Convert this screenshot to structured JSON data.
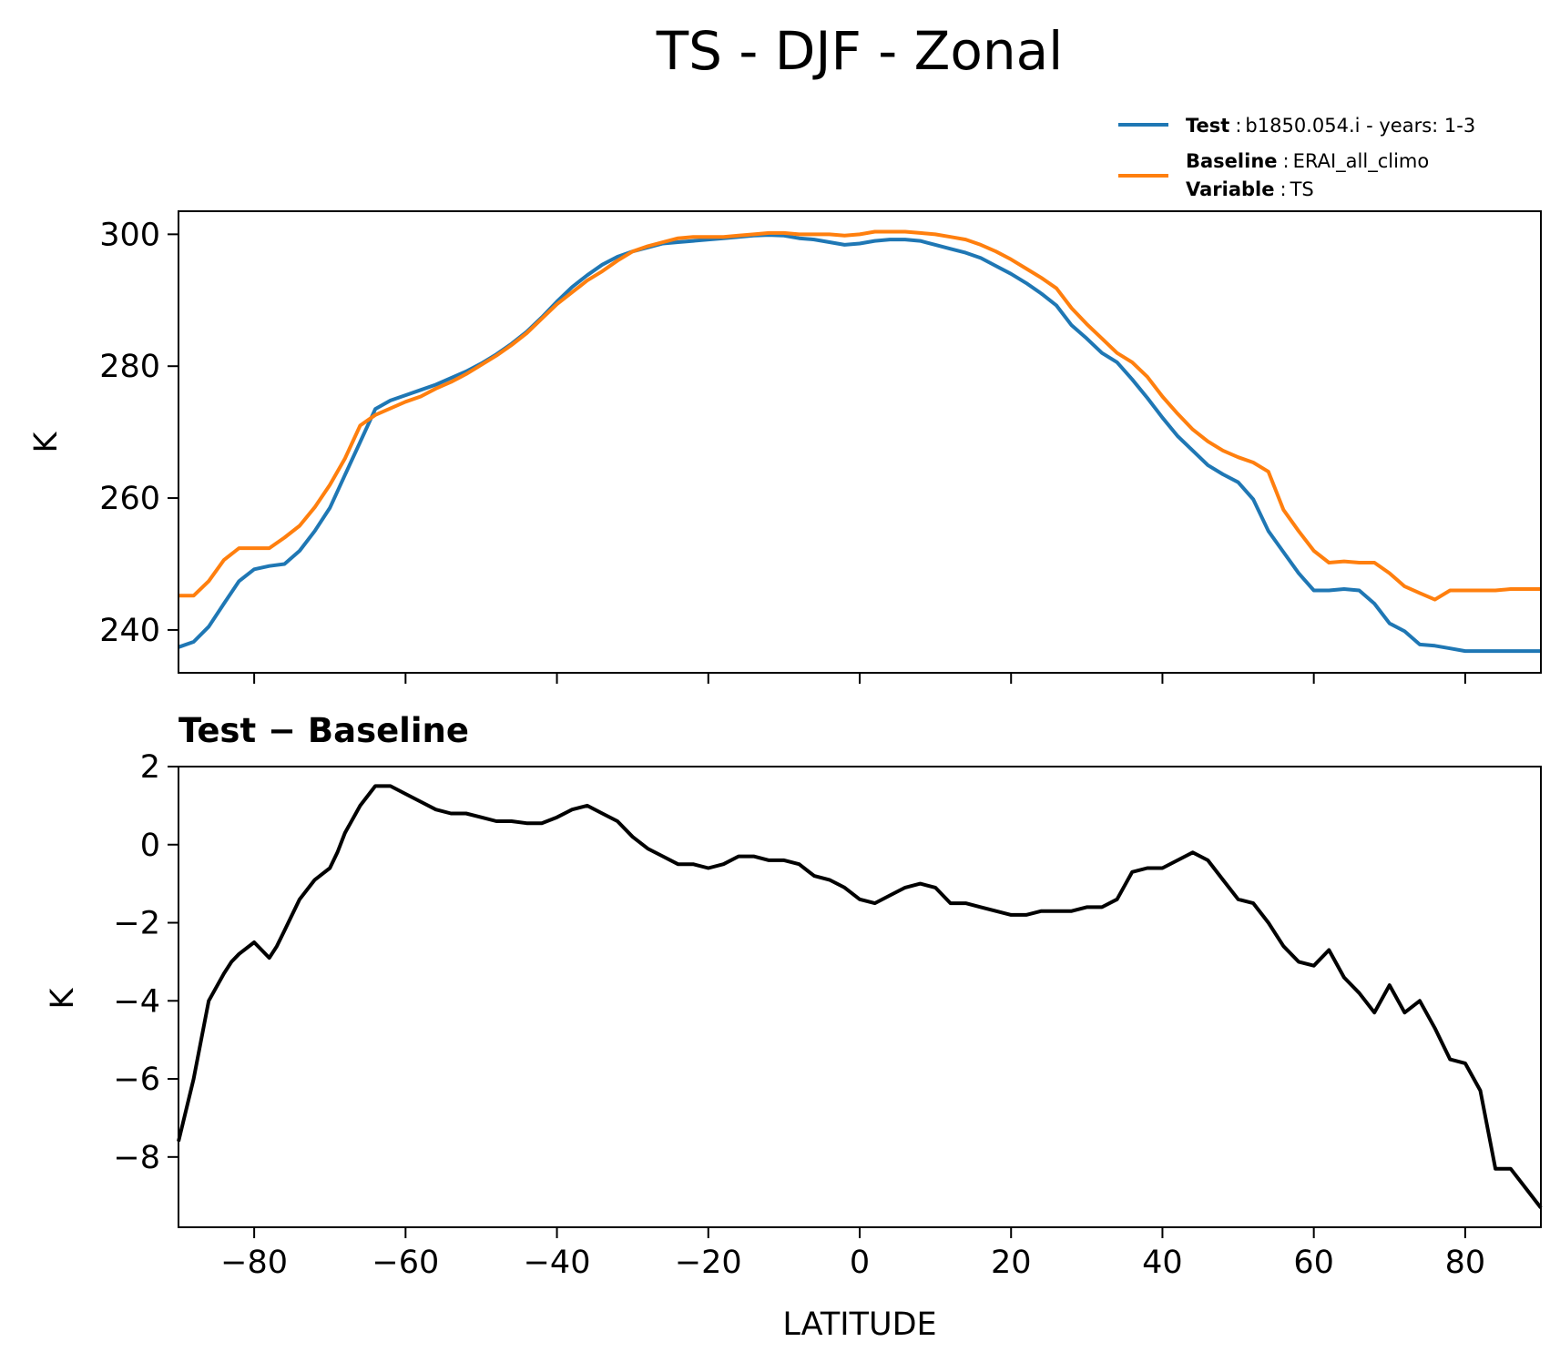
{
  "figure": {
    "title": "TS - DJF - Zonal"
  },
  "legend": {
    "test": {
      "label": "Test",
      "value": "b1850.054.i - years: 1-3"
    },
    "baseline": {
      "label": "Baseline",
      "value": "ERAI_all_climo"
    },
    "variable": {
      "label": "Variable",
      "value": "TS"
    },
    "separator": ":"
  },
  "colors": {
    "test": "#1f77b4",
    "baseline": "#ff7f0e",
    "difference": "#000000"
  },
  "chart_data": [
    {
      "type": "line",
      "title": "",
      "xlabel": "",
      "ylabel": "K",
      "xlim": [
        -90,
        90
      ],
      "ylim": [
        233.5,
        303.5
      ],
      "xticks": [
        -80,
        -60,
        -40,
        -20,
        0,
        20,
        40,
        60,
        80
      ],
      "xtick_labels_visible": false,
      "yticks": [
        240,
        260,
        280,
        300
      ],
      "ytick_labels": [
        "240",
        "260",
        "280",
        "300"
      ],
      "x": [
        -90,
        -88,
        -86,
        -84,
        -82,
        -80,
        -78,
        -76,
        -74,
        -72,
        -70,
        -68,
        -66,
        -64,
        -62,
        -60,
        -58,
        -56,
        -54,
        -52,
        -50,
        -48,
        -46,
        -44,
        -42,
        -40,
        -38,
        -36,
        -34,
        -32,
        -30,
        -28,
        -26,
        -24,
        -22,
        -20,
        -18,
        -16,
        -14,
        -12,
        -10,
        -8,
        -6,
        -4,
        -2,
        0,
        2,
        4,
        6,
        8,
        10,
        12,
        14,
        16,
        18,
        20,
        22,
        24,
        26,
        28,
        30,
        32,
        34,
        36,
        38,
        40,
        42,
        44,
        46,
        48,
        50,
        52,
        54,
        56,
        58,
        60,
        62,
        64,
        66,
        68,
        70,
        72,
        74,
        76,
        78,
        80,
        82,
        84,
        86,
        88,
        90
      ],
      "series": [
        {
          "name": "Test",
          "values": [
            237.4,
            238.2,
            240.5,
            244.0,
            247.4,
            249.2,
            249.7,
            250.0,
            252.0,
            255.0,
            258.5,
            263.5,
            268.5,
            273.5,
            274.8,
            275.6,
            276.4,
            277.2,
            278.2,
            279.2,
            280.4,
            281.8,
            283.4,
            285.2,
            287.4,
            289.8,
            292.0,
            293.8,
            295.4,
            296.6,
            297.4,
            298.0,
            298.6,
            298.8,
            299.0,
            299.2,
            299.4,
            299.6,
            299.8,
            299.9,
            299.8,
            299.4,
            299.2,
            298.8,
            298.4,
            298.6,
            299.0,
            299.2,
            299.2,
            299.0,
            298.4,
            297.8,
            297.2,
            296.4,
            295.2,
            294.0,
            292.6,
            291.0,
            289.2,
            286.2,
            284.2,
            282.0,
            280.6,
            278.0,
            275.2,
            272.2,
            269.4,
            267.2,
            265.0,
            263.6,
            262.4,
            259.8,
            255.0,
            251.8,
            248.6,
            246.0,
            246.0,
            246.2,
            246.0,
            244.0,
            241.0,
            239.8,
            237.8,
            237.6,
            237.2,
            236.8,
            236.8,
            236.8,
            236.8,
            236.8,
            236.8
          ],
          "color": "#1f77b4"
        },
        {
          "name": "Baseline",
          "values": [
            245.2,
            245.2,
            247.4,
            250.6,
            252.4,
            252.4,
            252.4,
            254.0,
            255.8,
            258.6,
            262.0,
            266.0,
            271.0,
            272.6,
            273.6,
            274.6,
            275.4,
            276.6,
            277.6,
            278.8,
            280.2,
            281.6,
            283.2,
            285.0,
            287.2,
            289.4,
            291.2,
            293.0,
            294.4,
            296.0,
            297.4,
            298.2,
            298.8,
            299.4,
            299.6,
            299.6,
            299.6,
            299.8,
            300.0,
            300.2,
            300.2,
            300.0,
            300.0,
            300.0,
            299.8,
            300.0,
            300.4,
            300.4,
            300.4,
            300.2,
            300.0,
            299.6,
            299.2,
            298.4,
            297.4,
            296.2,
            294.8,
            293.4,
            291.8,
            288.8,
            286.4,
            284.2,
            282.0,
            280.6,
            278.4,
            275.4,
            272.8,
            270.4,
            268.6,
            267.2,
            266.2,
            265.4,
            264.0,
            258.2,
            255.0,
            252.0,
            250.2,
            250.4,
            250.2,
            250.2,
            248.6,
            246.6,
            245.6,
            244.6,
            246.0,
            246.0,
            246.0,
            246.0,
            246.2,
            246.2,
            246.2
          ],
          "color": "#ff7f0e"
        }
      ]
    },
    {
      "type": "line",
      "title": "Test − Baseline",
      "xlabel": "LATITUDE",
      "ylabel": "K",
      "xlim": [
        -90,
        90
      ],
      "ylim": [
        -9.8,
        2.0
      ],
      "xticks": [
        -80,
        -60,
        -40,
        -20,
        0,
        20,
        40,
        60,
        80
      ],
      "xtick_labels": [
        "−80",
        "−60",
        "−40",
        "−20",
        "0",
        "20",
        "40",
        "60",
        "80"
      ],
      "yticks": [
        -8,
        -6,
        -4,
        -2,
        0,
        2
      ],
      "ytick_labels": [
        "−8",
        "−6",
        "−4",
        "−2",
        "0",
        "2"
      ],
      "x": [
        -90,
        -88,
        -86,
        -84,
        -83,
        -82,
        -80,
        -78,
        -77,
        -76,
        -74,
        -72,
        -70,
        -69,
        -68,
        -66,
        -64,
        -62,
        -60,
        -58,
        -56,
        -54,
        -52,
        -50,
        -48,
        -46,
        -44,
        -42,
        -40,
        -38,
        -36,
        -34,
        -32,
        -30,
        -28,
        -26,
        -24,
        -22,
        -20,
        -18,
        -16,
        -14,
        -12,
        -10,
        -8,
        -6,
        -4,
        -2,
        0,
        2,
        4,
        6,
        8,
        10,
        12,
        14,
        16,
        18,
        20,
        22,
        24,
        26,
        28,
        30,
        32,
        34,
        36,
        38,
        40,
        42,
        44,
        46,
        48,
        50,
        52,
        54,
        56,
        58,
        60,
        62,
        64,
        66,
        68,
        70,
        72,
        74,
        76,
        78,
        80,
        82,
        84,
        86,
        88,
        90
      ],
      "series": [
        {
          "name": "Test − Baseline",
          "values": [
            -7.6,
            -6.0,
            -4.0,
            -3.3,
            -3.0,
            -2.8,
            -2.5,
            -2.9,
            -2.6,
            -2.2,
            -1.4,
            -0.9,
            -0.6,
            -0.2,
            0.3,
            1.0,
            1.5,
            1.5,
            1.3,
            1.1,
            0.9,
            0.8,
            0.8,
            0.7,
            0.6,
            0.6,
            0.55,
            0.55,
            0.7,
            0.9,
            1.0,
            0.8,
            0.6,
            0.2,
            -0.1,
            -0.3,
            -0.5,
            -0.5,
            -0.6,
            -0.5,
            -0.3,
            -0.3,
            -0.4,
            -0.4,
            -0.5,
            -0.8,
            -0.9,
            -1.1,
            -1.4,
            -1.5,
            -1.3,
            -1.1,
            -1.0,
            -1.1,
            -1.5,
            -1.5,
            -1.6,
            -1.7,
            -1.8,
            -1.8,
            -1.7,
            -1.7,
            -1.7,
            -1.6,
            -1.6,
            -1.4,
            -0.7,
            -0.6,
            -0.6,
            -0.4,
            -0.2,
            -0.4,
            -0.9,
            -1.4,
            -1.5,
            -2.0,
            -2.6,
            -3.0,
            -3.1,
            -2.7,
            -3.4,
            -3.8,
            -4.3,
            -3.6,
            -4.3,
            -4.0,
            -4.7,
            -5.5,
            -5.6,
            -6.3,
            -8.3,
            -8.3,
            -8.8,
            -9.3
          ],
          "color": "#000000"
        }
      ]
    }
  ]
}
